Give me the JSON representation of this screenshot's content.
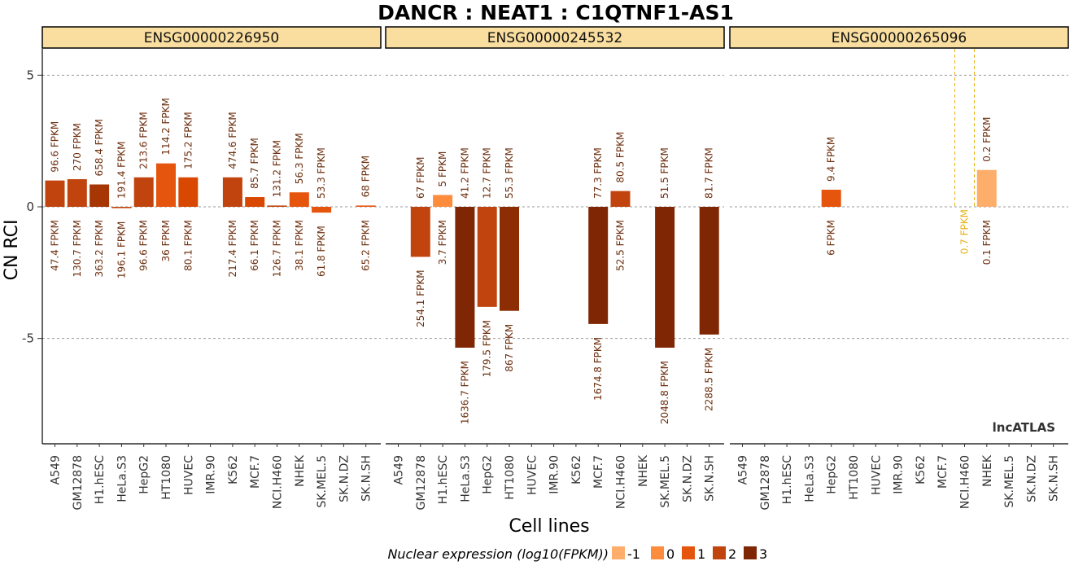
{
  "chart_data": {
    "type": "bar",
    "title": "DANCR : NEAT1 : C1QTNF1-AS1",
    "xlabel": "Cell lines",
    "ylabel": "CN RCI",
    "ylim": [
      -9,
      6
    ],
    "yticks": [
      -5,
      0,
      5
    ],
    "grid": "dashed at y ticks",
    "watermark": "lncATLAS",
    "cell_lines": [
      "A549",
      "GM12878",
      "H1.hESC",
      "HeLa.S3",
      "HepG2",
      "HT1080",
      "HUVEC",
      "IMR.90",
      "K562",
      "MCF.7",
      "NCI.H460",
      "NHEK",
      "SK.MEL.5",
      "SK.N.DZ",
      "SK.N.SH"
    ],
    "legend": {
      "title": "Nuclear expression (log10(FPKM))",
      "position": "bottom",
      "items": [
        {
          "label": "-1",
          "color": "#FDAE6B"
        },
        {
          "label": "0",
          "color": "#FD8D3C"
        },
        {
          "label": "1",
          "color": "#E6550D"
        },
        {
          "label": "2",
          "color": "#C1440E"
        },
        {
          "label": "3",
          "color": "#7F2704"
        }
      ]
    },
    "panels": [
      {
        "gene": "ENSG00000226950",
        "bars": [
          {
            "cell": "A549",
            "value": 1.0,
            "color": "#C1440E",
            "top_label": "96.6 FPKM",
            "bottom_label": "47.4 FPKM"
          },
          {
            "cell": "GM12878",
            "value": 1.05,
            "color": "#C1440E",
            "top_label": "270 FPKM",
            "bottom_label": "130.7 FPKM"
          },
          {
            "cell": "H1.hESC",
            "value": 0.85,
            "color": "#A63603",
            "top_label": "658.4 FPKM",
            "bottom_label": "363.2 FPKM"
          },
          {
            "cell": "HeLa.S3",
            "value": -0.05,
            "color": "#C1440E",
            "top_label": "191.4 FPKM",
            "bottom_label": "196.1 FPKM"
          },
          {
            "cell": "HepG2",
            "value": 1.12,
            "color": "#C1440E",
            "top_label": "213.6 FPKM",
            "bottom_label": "96.6 FPKM"
          },
          {
            "cell": "HT1080",
            "value": 1.65,
            "color": "#E6550D",
            "top_label": "114.2 FPKM",
            "bottom_label": "36 FPKM"
          },
          {
            "cell": "HUVEC",
            "value": 1.12,
            "color": "#D94801",
            "top_label": "175.2 FPKM",
            "bottom_label": "80.1 FPKM"
          },
          {
            "cell": "K562",
            "value": 1.12,
            "color": "#C1440E",
            "top_label": "474.6 FPKM",
            "bottom_label": "217.4 FPKM"
          },
          {
            "cell": "MCF.7",
            "value": 0.37,
            "color": "#D94801",
            "top_label": "85.7 FPKM",
            "bottom_label": "66.1 FPKM"
          },
          {
            "cell": "NCI.H460",
            "value": 0.05,
            "color": "#C1440E",
            "top_label": "131.2 FPKM",
            "bottom_label": "126.7 FPKM"
          },
          {
            "cell": "NHEK",
            "value": 0.55,
            "color": "#E6550D",
            "top_label": "56.3 FPKM",
            "bottom_label": "38.1 FPKM"
          },
          {
            "cell": "SK.MEL.5",
            "value": -0.22,
            "color": "#E6550D",
            "top_label": "53.3 FPKM",
            "bottom_label": "61.8 FPKM"
          },
          {
            "cell": "SK.N.SH",
            "value": 0.05,
            "color": "#E6550D",
            "top_label": "68 FPKM",
            "bottom_label": "65.2 FPKM"
          }
        ]
      },
      {
        "gene": "ENSG00000245532",
        "bars": [
          {
            "cell": "GM12878",
            "value": -1.9,
            "color": "#C1440E",
            "top_label": "67 FPKM",
            "bottom_label": "254.1 FPKM"
          },
          {
            "cell": "H1.hESC",
            "value": 0.45,
            "color": "#FD8D3C",
            "top_label": "5 FPKM",
            "bottom_label": "3.7 FPKM"
          },
          {
            "cell": "HeLa.S3",
            "value": -5.35,
            "color": "#7F2704",
            "top_label": "41.2 FPKM",
            "bottom_label": "1636.7 FPKM"
          },
          {
            "cell": "HepG2",
            "value": -3.8,
            "color": "#C1440E",
            "top_label": "12.7 FPKM",
            "bottom_label": "179.5 FPKM"
          },
          {
            "cell": "HT1080",
            "value": -3.95,
            "color": "#8C2D04",
            "top_label": "55.3 FPKM",
            "bottom_label": "867 FPKM"
          },
          {
            "cell": "MCF.7",
            "value": -4.45,
            "color": "#7F2704",
            "top_label": "77.3 FPKM",
            "bottom_label": "1674.8 FPKM"
          },
          {
            "cell": "NCI.H460",
            "value": 0.6,
            "color": "#C1440E",
            "top_label": "80.5 FPKM",
            "bottom_label": "52.5 FPKM"
          },
          {
            "cell": "SK.MEL.5",
            "value": -5.35,
            "color": "#7F2704",
            "top_label": "51.5 FPKM",
            "bottom_label": "2048.8 FPKM"
          },
          {
            "cell": "SK.N.SH",
            "value": -4.85,
            "color": "#7F2704",
            "top_label": "81.7 FPKM",
            "bottom_label": "2288.5 FPKM"
          }
        ]
      },
      {
        "gene": "ENSG00000265096",
        "bars": [
          {
            "cell": "HepG2",
            "value": 0.65,
            "color": "#E6550D",
            "top_label": "9.4 FPKM",
            "bottom_label": "6 FPKM"
          },
          {
            "cell": "NCI.H460",
            "value": null,
            "color": "#E8B21A",
            "dashed": true,
            "top_label": "0.7 FPKM",
            "bottom_label": ""
          },
          {
            "cell": "NHEK",
            "value": 1.4,
            "color": "#FDAE6B",
            "top_label": "0.2 FPKM",
            "bottom_label": "0.1 FPKM"
          }
        ]
      }
    ]
  }
}
